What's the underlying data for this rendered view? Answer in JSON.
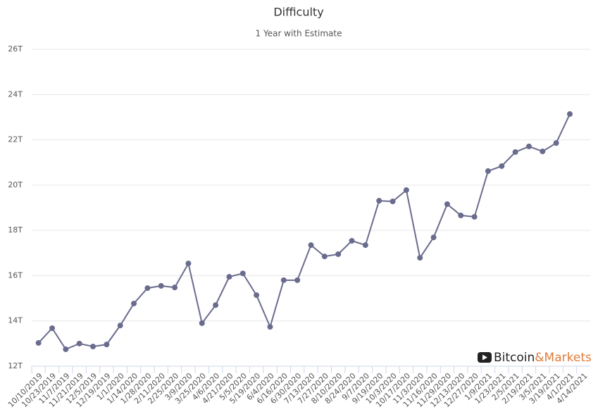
{
  "chart_data": {
    "type": "line",
    "title": "Difficulty",
    "subtitle": "1 Year with Estimate",
    "watermark": [
      "Bitcoin",
      "&Markets"
    ],
    "categories": [
      "10/10/2019",
      "10/23/2019",
      "11/7/2019",
      "11/21/2019",
      "12/5/2019",
      "12/19/2019",
      "1/1/2020",
      "1/14/2020",
      "1/28/2020",
      "2/11/2020",
      "2/25/2020",
      "3/9/2020",
      "3/25/2020",
      "4/6/2020",
      "4/21/2020",
      "5/5/2020",
      "5/19/2020",
      "6/4/2020",
      "6/16/2020",
      "6/30/2020",
      "7/13/2020",
      "7/27/2020",
      "8/10/2020",
      "8/24/2020",
      "9/7/2020",
      "9/19/2020",
      "10/3/2020",
      "10/17/2020",
      "11/3/2020",
      "11/16/2020",
      "11/29/2020",
      "12/13/2020",
      "12/27/2020",
      "1/9/2021",
      "1/23/2021",
      "2/5/2021",
      "2/19/2021",
      "3/5/2021",
      "3/19/2021",
      "4/1/2021",
      "4/14/2021"
    ],
    "series": [
      {
        "name": "Difficulty",
        "color": "#6a6c8e",
        "values": [
          13.03,
          13.68,
          12.75,
          13.0,
          12.87,
          12.96,
          13.8,
          14.77,
          15.45,
          15.55,
          15.48,
          16.54,
          13.9,
          14.7,
          15.95,
          16.1,
          15.14,
          13.74,
          15.8,
          15.8,
          17.35,
          16.85,
          16.95,
          17.54,
          17.35,
          19.31,
          19.28,
          19.78,
          16.79,
          17.69,
          19.16,
          18.66,
          18.6,
          20.62,
          20.84,
          21.46,
          21.71,
          21.49,
          21.86,
          23.14,
          null
        ]
      }
    ],
    "ylim": [
      12,
      26
    ],
    "yticks": [
      {
        "value": 12,
        "label": "12T"
      },
      {
        "value": 14,
        "label": "14T"
      },
      {
        "value": 16,
        "label": "16T"
      },
      {
        "value": 18,
        "label": "18T"
      },
      {
        "value": 20,
        "label": "20T"
      },
      {
        "value": 22,
        "label": "22T"
      },
      {
        "value": 24,
        "label": "24T"
      },
      {
        "value": 26,
        "label": "26T"
      }
    ],
    "grid": true
  }
}
